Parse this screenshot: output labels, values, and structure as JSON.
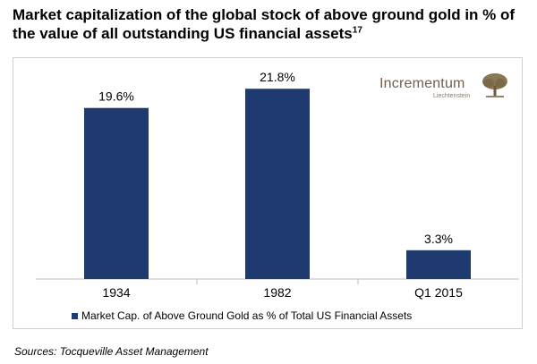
{
  "title": {
    "text": "Market capitalization of the global stock of above ground gold in % of the value of all outstanding US financial assets",
    "footnote": "17"
  },
  "logo": {
    "name": "Incrementum",
    "subtitle": "Liechtenstein"
  },
  "source": "Sources: Tocqueville Asset Management",
  "colors": {
    "bar": "#1f3a6e",
    "logo": "#7a6a55"
  },
  "chart_data": {
    "type": "bar",
    "title": "Market capitalization of the global stock of above ground gold in % of the value of all outstanding US financial assets",
    "categories": [
      "1934",
      "1982",
      "Q1 2015"
    ],
    "series": [
      {
        "name": "Market Cap. of Above Ground Gold as % of Total US Financial Assets",
        "values": [
          19.6,
          21.8,
          3.3
        ]
      }
    ],
    "data_labels": [
      "19.6%",
      "21.8%",
      "3.3%"
    ],
    "xlabel": "",
    "ylabel": "",
    "ylim": [
      0,
      25
    ],
    "grid": false,
    "legend": "bottom"
  }
}
